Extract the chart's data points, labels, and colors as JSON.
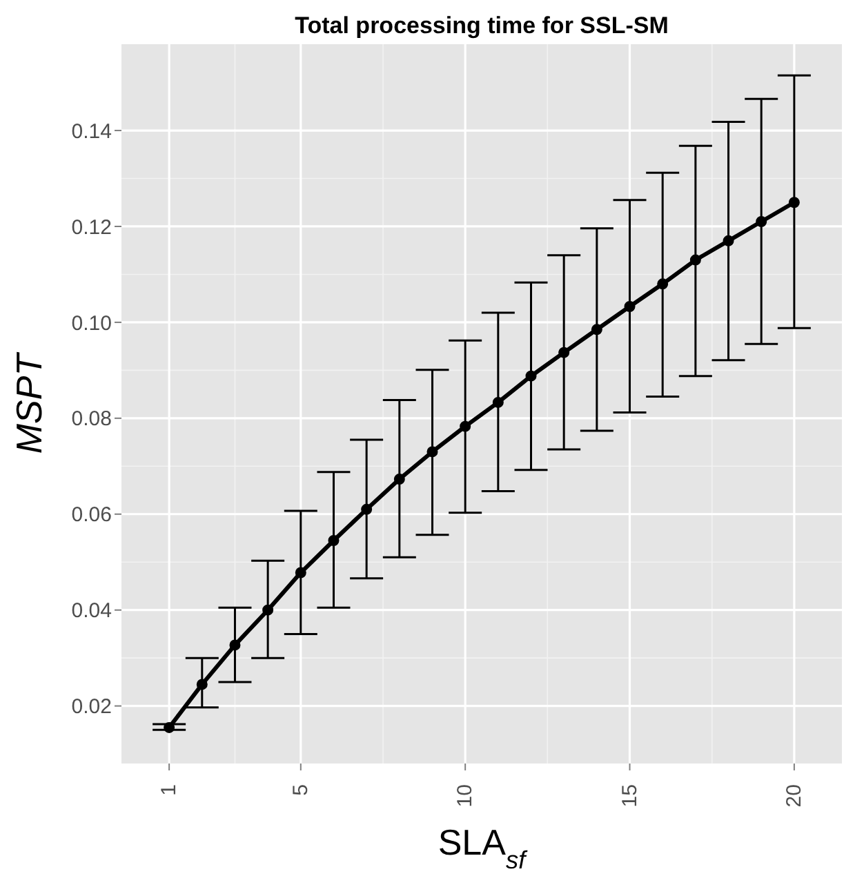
{
  "chart_data": {
    "type": "line",
    "title": "Total processing time for SSL-SM",
    "xlabel": "SLA$_{sf}$",
    "ylabel": "MSPT",
    "x": [
      1,
      2,
      3,
      4,
      5,
      6,
      7,
      8,
      9,
      10,
      11,
      12,
      13,
      14,
      15,
      16,
      17,
      18,
      19,
      20
    ],
    "series": [
      {
        "color": "#000000",
        "values": [
          0.0155,
          0.0245,
          0.0327,
          0.04,
          0.0478,
          0.0545,
          0.061,
          0.0673,
          0.073,
          0.0783,
          0.0833,
          0.0888,
          0.0937,
          0.0985,
          0.1033,
          0.108,
          0.113,
          0.117,
          0.121,
          0.125
        ],
        "errors": [
          [
            0.015,
            0.0162
          ],
          [
            0.0197,
            0.03
          ],
          [
            0.025,
            0.0405
          ],
          [
            0.03,
            0.0503
          ],
          [
            0.035,
            0.0607
          ],
          [
            0.0405,
            0.0688
          ],
          [
            0.0466,
            0.0755
          ],
          [
            0.051,
            0.0838
          ],
          [
            0.0557,
            0.0901
          ],
          [
            0.0603,
            0.0962
          ],
          [
            0.0648,
            0.102
          ],
          [
            0.0692,
            0.1083
          ],
          [
            0.0735,
            0.114
          ],
          [
            0.0774,
            0.1196
          ],
          [
            0.0812,
            0.1255
          ],
          [
            0.0845,
            0.1312
          ],
          [
            0.0888,
            0.1368
          ],
          [
            0.0921,
            0.1418
          ],
          [
            0.0955,
            0.1466
          ],
          [
            0.0988,
            0.1515
          ]
        ]
      }
    ],
    "xlim": [
      -0.45,
      21.45
    ],
    "xticks": [
      1,
      5,
      10,
      15,
      20
    ],
    "ylim": [
      0.008,
      0.158
    ],
    "yticks": [
      0.02,
      0.04,
      0.06,
      0.08,
      {
        "value": 0.1,
        "label": "0.10"
      },
      0.12,
      0.14
    ],
    "grid": true,
    "marker": "circle",
    "line_style": "solid"
  }
}
